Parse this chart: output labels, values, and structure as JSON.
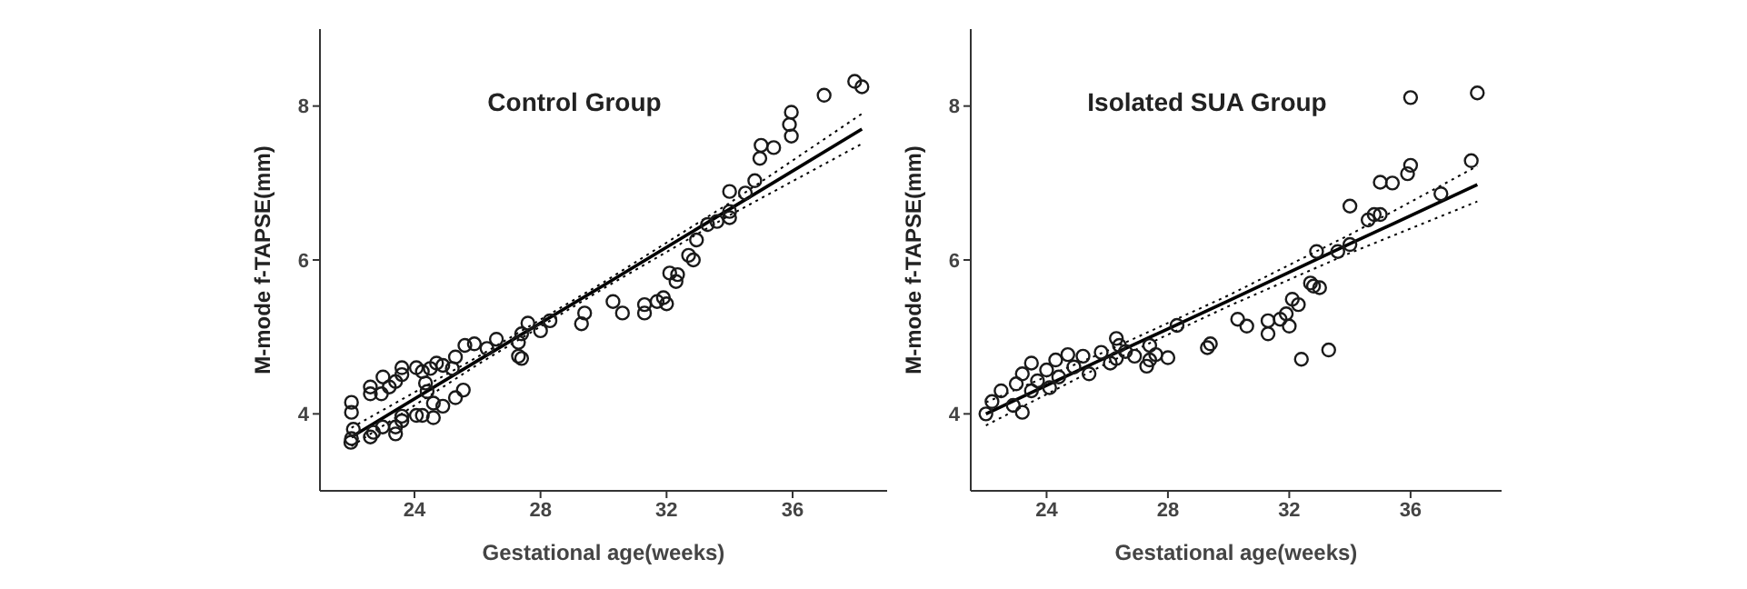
{
  "chart_data": [
    {
      "type": "scatter",
      "title": "Control Group",
      "xlabel": "Gestational age(weeks)",
      "ylabel": "M-mode f-TAPSE(mm)",
      "xlim": [
        21,
        39
      ],
      "xticks": [
        24,
        28,
        32,
        36
      ],
      "ylim": [
        3,
        9
      ],
      "yticks": [
        4,
        6,
        8
      ],
      "series": [
        {
          "color": "#1a1a1a",
          "marker": "circle",
          "x": [
            21.98,
            22.0,
            22.06,
            22.0,
            22.0,
            22.6,
            22.7,
            22.99,
            23.4,
            23.4,
            23.6,
            23.6,
            22.6,
            22.6,
            22.95,
            23.0,
            23.2,
            23.4,
            23.6,
            23.6,
            24.06,
            24.06,
            24.25,
            24.25,
            24.35,
            24.4,
            24.5,
            24.6,
            24.6,
            24.7,
            24.9,
            24.9,
            25.2,
            25.3,
            25.3,
            25.55,
            25.6,
            25.9,
            26.3,
            26.6,
            27.3,
            27.4,
            27.3,
            27.4,
            27.6,
            28.0,
            28.3,
            29.3,
            29.4,
            30.3,
            30.6,
            31.3,
            31.3,
            31.7,
            31.9,
            32.0,
            32.1,
            32.3,
            32.35,
            32.7,
            32.85,
            32.95,
            33.3,
            33.6,
            34.0,
            34.0,
            34.0,
            34.5,
            34.8,
            34.96,
            35.0,
            35.4,
            35.9,
            35.96,
            35.96,
            37.0,
            37.97,
            38.2
          ],
          "values": [
            3.63,
            3.68,
            3.8,
            4.02,
            4.15,
            3.7,
            3.76,
            3.83,
            3.74,
            3.83,
            3.91,
            3.97,
            4.26,
            4.35,
            4.26,
            4.48,
            4.35,
            4.42,
            4.51,
            4.6,
            4.6,
            3.98,
            3.98,
            4.55,
            4.4,
            4.29,
            4.59,
            4.14,
            3.95,
            4.66,
            4.1,
            4.63,
            4.59,
            4.74,
            4.21,
            4.31,
            4.89,
            4.91,
            4.85,
            4.97,
            4.93,
            5.04,
            4.75,
            4.72,
            5.18,
            5.08,
            5.21,
            5.17,
            5.31,
            5.46,
            5.31,
            5.31,
            5.42,
            5.46,
            5.51,
            5.43,
            5.83,
            5.72,
            5.81,
            6.06,
            6.0,
            6.26,
            6.46,
            6.5,
            6.55,
            6.63,
            6.89,
            6.87,
            7.03,
            7.32,
            7.49,
            7.46,
            7.76,
            7.92,
            7.61,
            8.14,
            8.32,
            8.25
          ]
        },
        {
          "type": "line",
          "color": "#000000",
          "marker": "none",
          "line_style": "solid",
          "x": [
            22,
            26,
            30,
            34,
            38.2
          ],
          "values": [
            3.7,
            4.69,
            5.67,
            6.66,
            7.7
          ]
        },
        {
          "type": "line",
          "color": "#000000",
          "marker": "none",
          "line_style": "dotted",
          "x": [
            22,
            26,
            30,
            34,
            38.2
          ],
          "values": [
            3.58,
            4.64,
            5.63,
            6.58,
            7.51
          ]
        },
        {
          "type": "line",
          "color": "#000000",
          "marker": "none",
          "line_style": "dotted",
          "x": [
            22,
            26,
            30,
            34,
            38.2
          ],
          "values": [
            3.82,
            4.74,
            5.71,
            6.74,
            7.9
          ]
        }
      ]
    },
    {
      "type": "scatter",
      "title": "Isolated SUA Group",
      "xlabel": "Gestational age(weeks)",
      "ylabel": "M-mode f-TAPSE(mm)",
      "xlim": [
        21.5,
        39
      ],
      "xticks": [
        24,
        28,
        32,
        36
      ],
      "ylim": [
        3,
        9
      ],
      "yticks": [
        4,
        6,
        8
      ],
      "series": [
        {
          "color": "#1a1a1a",
          "marker": "circle",
          "x": [
            22.0,
            22.2,
            22.5,
            22.9,
            23.0,
            23.2,
            23.2,
            23.5,
            23.5,
            23.7,
            24.0,
            24.1,
            24.3,
            24.4,
            24.7,
            24.9,
            25.2,
            25.4,
            25.8,
            26.1,
            26.4,
            26.9,
            26.3,
            26.3,
            26.6,
            27.3,
            27.4,
            27.4,
            27.6,
            28.0,
            28.3,
            29.3,
            29.4,
            30.3,
            30.6,
            31.3,
            31.3,
            31.7,
            31.9,
            32.0,
            32.1,
            32.3,
            32.4,
            32.7,
            32.8,
            33.0,
            32.9,
            33.3,
            33.6,
            34.0,
            34.0,
            34.6,
            34.8,
            35.0,
            35.0,
            35.4,
            35.9,
            36.0,
            36.0,
            37.0,
            38.0,
            38.2
          ],
          "values": [
            4.0,
            4.16,
            4.3,
            4.11,
            4.39,
            4.02,
            4.52,
            4.66,
            4.3,
            4.43,
            4.57,
            4.34,
            4.7,
            4.48,
            4.77,
            4.61,
            4.75,
            4.52,
            4.8,
            4.66,
            4.89,
            4.75,
            4.98,
            4.72,
            4.81,
            4.62,
            4.7,
            4.89,
            4.77,
            4.73,
            5.15,
            4.86,
            4.91,
            5.23,
            5.14,
            5.04,
            5.21,
            5.23,
            5.3,
            5.14,
            5.49,
            5.42,
            4.71,
            5.7,
            5.66,
            5.64,
            6.11,
            4.83,
            6.11,
            6.2,
            6.7,
            6.52,
            6.59,
            6.59,
            7.01,
            7.0,
            7.12,
            7.23,
            8.11,
            6.86,
            7.29,
            8.17
          ]
        },
        {
          "type": "line",
          "color": "#000000",
          "marker": "none",
          "line_style": "solid",
          "x": [
            22,
            26,
            30,
            34,
            38.2
          ],
          "values": [
            4.0,
            4.74,
            5.47,
            6.21,
            6.98
          ]
        },
        {
          "type": "line",
          "color": "#000000",
          "marker": "none",
          "line_style": "dotted",
          "x": [
            22,
            26,
            30,
            34,
            38.2
          ],
          "values": [
            3.85,
            4.66,
            5.4,
            6.09,
            6.76
          ]
        },
        {
          "type": "line",
          "color": "#000000",
          "marker": "none",
          "line_style": "dotted",
          "x": [
            22,
            26,
            30,
            34,
            38.2
          ],
          "values": [
            4.15,
            4.82,
            5.54,
            6.33,
            7.22
          ]
        }
      ]
    }
  ]
}
